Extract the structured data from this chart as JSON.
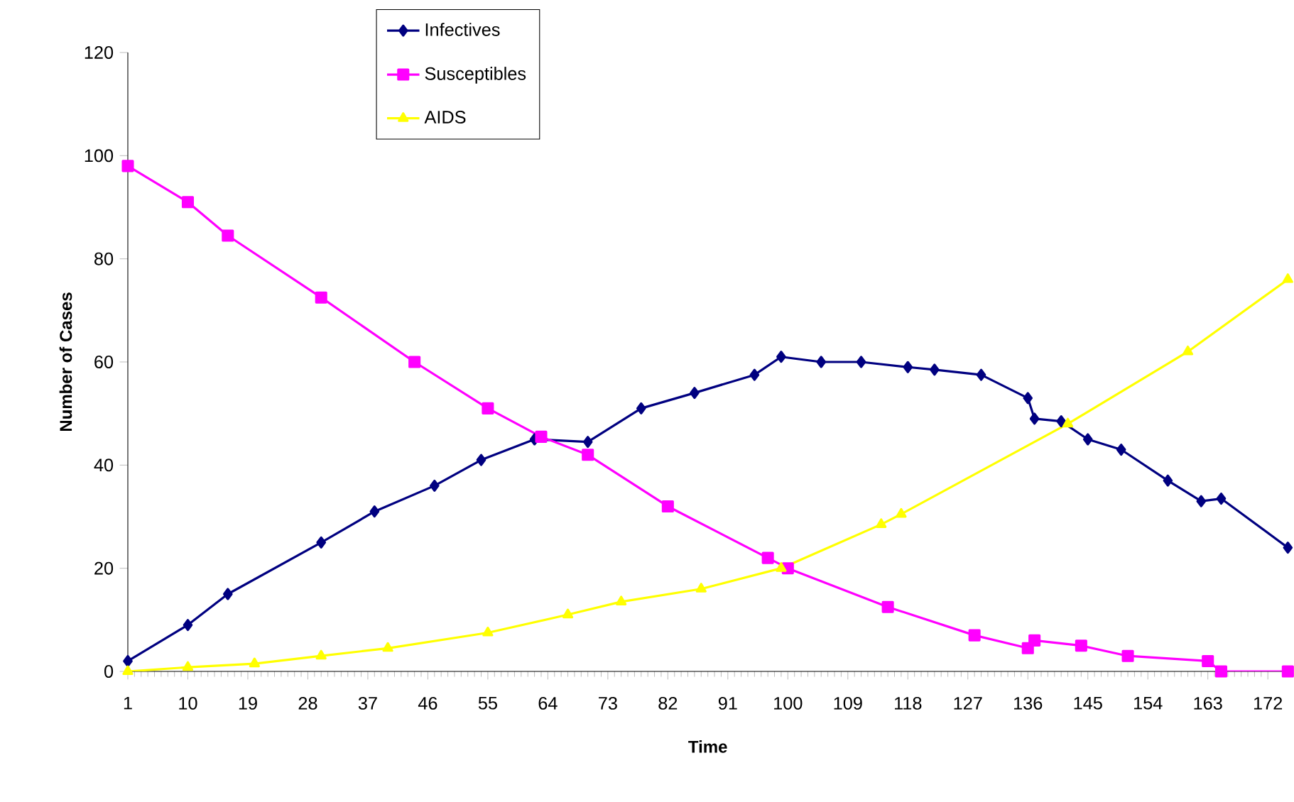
{
  "chart_data": {
    "type": "line",
    "xlabel": "Time",
    "ylabel": "Number of Cases",
    "xlim": [
      1,
      175
    ],
    "xticks": [
      1,
      10,
      19,
      28,
      37,
      46,
      55,
      64,
      73,
      82,
      91,
      100,
      109,
      118,
      127,
      136,
      145,
      154,
      163,
      172
    ],
    "ylim": [
      0,
      120
    ],
    "yticks": [
      0,
      20,
      40,
      60,
      80,
      100,
      120
    ],
    "grid": false,
    "legend": "top",
    "series": [
      {
        "name": "Infectives",
        "color": "#000080",
        "marker": "diamond",
        "x": [
          1,
          10,
          16,
          30,
          38,
          47,
          54,
          62,
          70,
          78,
          86,
          95,
          99,
          105,
          111,
          118,
          122,
          129,
          136,
          137,
          141,
          145,
          150,
          157,
          162,
          165,
          175
        ],
        "values": [
          2,
          9,
          15,
          25,
          31,
          36,
          41,
          45,
          44.5,
          51,
          54,
          57.5,
          61,
          60,
          60,
          59,
          58.5,
          57.5,
          53,
          49,
          48.5,
          45,
          43,
          37,
          33,
          33.5,
          24
        ]
      },
      {
        "name": "Susceptibles",
        "color": "#ff00ff",
        "marker": "square",
        "x": [
          1,
          10,
          16,
          30,
          44,
          55,
          63,
          70,
          82,
          97,
          100,
          115,
          128,
          136,
          137,
          144,
          151,
          163,
          165,
          175
        ],
        "values": [
          98,
          91,
          84.5,
          72.5,
          60,
          51,
          45.5,
          42,
          32,
          22,
          20,
          12.5,
          7,
          4.5,
          6,
          5,
          3,
          2,
          0,
          0
        ]
      },
      {
        "name": "AIDS",
        "color": "#ffff00",
        "marker": "triangle",
        "x": [
          1,
          10,
          20,
          30,
          40,
          55,
          67,
          75,
          87,
          99,
          114,
          117,
          142,
          160,
          175
        ],
        "values": [
          0,
          0.8,
          1.5,
          3,
          4.5,
          7.5,
          11,
          13.5,
          16,
          20,
          28.5,
          30.5,
          48,
          62,
          76
        ]
      }
    ]
  }
}
